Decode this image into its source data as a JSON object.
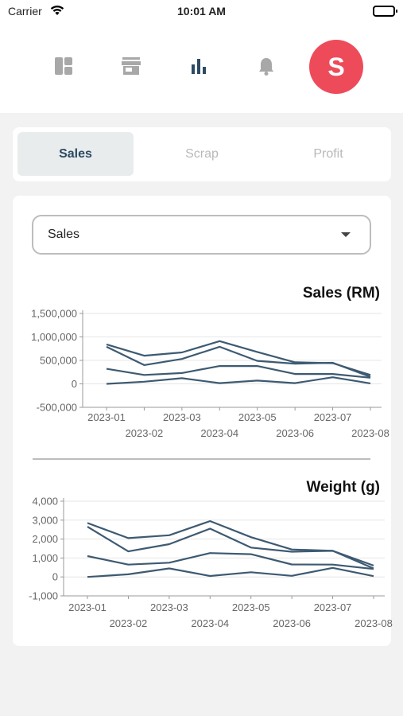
{
  "status_bar": {
    "carrier": "Carrier",
    "time": "10:01 AM"
  },
  "nav": {
    "icons": [
      "dashboard-icon",
      "store-icon",
      "bar-chart-icon",
      "bell-icon"
    ],
    "avatar_initial": "S",
    "avatar_color": "#ee4b5a",
    "active_icon_color": "#2d4a64",
    "inactive_icon_color": "#a8a8a8"
  },
  "tabs": [
    {
      "label": "Sales",
      "active": true
    },
    {
      "label": "Scrap",
      "active": false
    },
    {
      "label": "Profit",
      "active": false
    }
  ],
  "dropdown": {
    "selected": "Sales"
  },
  "line_color": "#3d5a72",
  "chart_data": [
    {
      "type": "line",
      "title": "Sales (RM)",
      "x": [
        "2023-01",
        "2023-02",
        "2023-03",
        "2023-04",
        "2023-05",
        "2023-06",
        "2023-07",
        "2023-08"
      ],
      "yticks": [
        "1,500,000",
        "1,000,000",
        "500,000",
        "0",
        "-500,000"
      ],
      "ylim": [
        -500000,
        1500000
      ],
      "grid": true,
      "series": [
        {
          "values": [
            840000,
            600000,
            670000,
            910000,
            680000,
            460000,
            440000,
            190000
          ]
        },
        {
          "values": [
            790000,
            400000,
            530000,
            790000,
            490000,
            430000,
            450000,
            150000
          ]
        },
        {
          "values": [
            320000,
            190000,
            230000,
            380000,
            380000,
            210000,
            210000,
            130000
          ]
        },
        {
          "values": [
            0,
            45000,
            120000,
            15000,
            70000,
            15000,
            140000,
            10000
          ]
        }
      ]
    },
    {
      "type": "line",
      "title": "Weight (g)",
      "x": [
        "2023-01",
        "2023-02",
        "2023-03",
        "2023-04",
        "2023-05",
        "2023-06",
        "2023-07",
        "2023-08"
      ],
      "yticks": [
        "4,000",
        "3,000",
        "2,000",
        "1,000",
        "0",
        "-1,000"
      ],
      "ylim": [
        -1000,
        4000
      ],
      "grid": true,
      "series": [
        {
          "values": [
            2850,
            2050,
            2200,
            2950,
            2100,
            1450,
            1380,
            600
          ]
        },
        {
          "values": [
            2650,
            1350,
            1730,
            2550,
            1550,
            1330,
            1380,
            450
          ]
        },
        {
          "values": [
            1100,
            650,
            750,
            1260,
            1200,
            660,
            650,
            420
          ]
        },
        {
          "values": [
            0,
            140,
            450,
            50,
            250,
            60,
            480,
            40
          ]
        }
      ]
    }
  ]
}
